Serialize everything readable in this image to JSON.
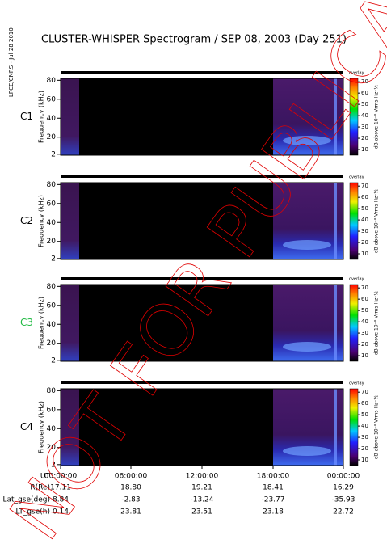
{
  "header": {
    "title": "CLUSTER-WHISPER Spectrogram / SEP 08, 2003 (Day 251)",
    "credit": "LPCE/CNRS - Jul 28 2010",
    "watermark": "NOT FOR PUBLICATION"
  },
  "panels": [
    {
      "label": "C1",
      "color": "#000000"
    },
    {
      "label": "C2",
      "color": "#000000"
    },
    {
      "label": "C3",
      "color": "#22bb44"
    },
    {
      "label": "C4",
      "color": "#000000"
    }
  ],
  "yaxis": {
    "label": "Frequency (kHz)",
    "ylim": [
      1,
      82
    ],
    "yticks": [
      2,
      20,
      40,
      60,
      80
    ]
  },
  "colorbar": {
    "label": "dB above 10⁻⁸ Vrms Hz⁻½",
    "tag": "overlay",
    "clim": [
      5,
      73
    ],
    "ticks": [
      10,
      20,
      30,
      40,
      50,
      60,
      70
    ]
  },
  "ephemeris": {
    "rows": [
      {
        "name": "UT",
        "values": [
          "00:00:00",
          "06:00:00",
          "12:00:00",
          "18:00:00",
          "00:00:00"
        ]
      },
      {
        "name": "R(Re)",
        "values": [
          "17.11",
          "18.80",
          "19.21",
          "18.41",
          "16.29"
        ]
      },
      {
        "name": "Lat_gse(deg)",
        "values": [
          "8.84",
          "-2.83",
          "-13.24",
          "-23.77",
          "-35.93"
        ]
      },
      {
        "name": "LT_gse(h)",
        "values": [
          "0.14",
          "23.81",
          "23.51",
          "23.18",
          "22.72"
        ]
      }
    ]
  }
}
